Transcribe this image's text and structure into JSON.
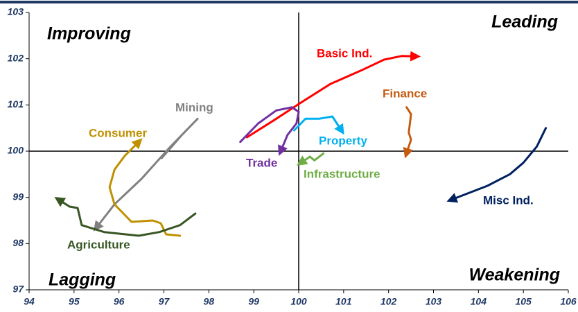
{
  "chart_data": {
    "type": "line",
    "annotations": [
      "Improving",
      "Leading",
      "Lagging",
      "Weakening"
    ],
    "xlim": [
      94,
      106
    ],
    "xticks": [
      94,
      95,
      96,
      97,
      98,
      99,
      100,
      101,
      102,
      103,
      104,
      105,
      106
    ],
    "ylim": [
      97,
      103
    ],
    "yticks": [
      97,
      98,
      99,
      100,
      101,
      102,
      103
    ],
    "series": [
      {
        "name": "Basic Ind.",
        "color": "#ff0000",
        "x": [
          98.85,
          99.5,
          100.05,
          100.7,
          101.4,
          101.9,
          102.3,
          102.6
        ],
        "values": [
          100.3,
          100.7,
          101.05,
          101.45,
          101.75,
          101.98,
          102.06,
          102.05
        ]
      },
      {
        "name": "Trade",
        "color": "#7030a0",
        "x": [
          98.7,
          99.1,
          99.5,
          99.85,
          100.0,
          99.95,
          99.75,
          99.6
        ],
        "values": [
          100.2,
          100.6,
          100.88,
          100.95,
          100.85,
          100.6,
          100.35,
          100.0
        ]
      },
      {
        "name": "Property",
        "color": "#00b0f0",
        "x": [
          99.9,
          100.15,
          100.45,
          100.75,
          100.95
        ],
        "values": [
          100.45,
          100.7,
          100.7,
          100.75,
          100.45
        ]
      },
      {
        "name": "Infrastructure",
        "color": "#70ad47",
        "x": [
          100.55,
          100.35,
          100.25,
          100.05
        ],
        "values": [
          99.95,
          99.8,
          99.88,
          99.75
        ]
      },
      {
        "name": "Finance",
        "color": "#c55a11",
        "x": [
          102.4,
          102.5,
          102.45,
          102.5,
          102.4
        ],
        "values": [
          100.95,
          100.8,
          100.4,
          100.25,
          99.95
        ]
      },
      {
        "name": "Misc Ind.",
        "color": "#002060",
        "x": [
          105.5,
          105.3,
          105.0,
          104.7,
          104.2,
          103.4
        ],
        "values": [
          100.5,
          100.1,
          99.75,
          99.5,
          99.25,
          98.95
        ]
      },
      {
        "name": "Mining",
        "color": "#808080",
        "x": [
          96.95,
          97.4,
          97.75,
          97.6,
          97.1,
          96.5,
          95.9,
          95.5
        ],
        "values": [
          99.85,
          100.35,
          100.7,
          100.55,
          100.05,
          99.4,
          98.85,
          98.35
        ]
      },
      {
        "name": "Consumer",
        "color": "#bf9000",
        "x": [
          97.36,
          97.05,
          96.93,
          96.75,
          96.28,
          95.9,
          95.79,
          95.9,
          96.13,
          96.44
        ],
        "values": [
          98.17,
          98.2,
          98.44,
          98.5,
          98.47,
          98.85,
          99.22,
          99.6,
          99.9,
          100.2
        ]
      },
      {
        "name": "Agriculture",
        "color": "#375623",
        "x": [
          97.7,
          97.36,
          96.9,
          96.44,
          95.67,
          95.17,
          95.08,
          94.9,
          94.66
        ],
        "values": [
          98.65,
          98.4,
          98.25,
          98.17,
          98.25,
          98.4,
          98.77,
          98.8,
          98.95
        ]
      }
    ]
  }
}
